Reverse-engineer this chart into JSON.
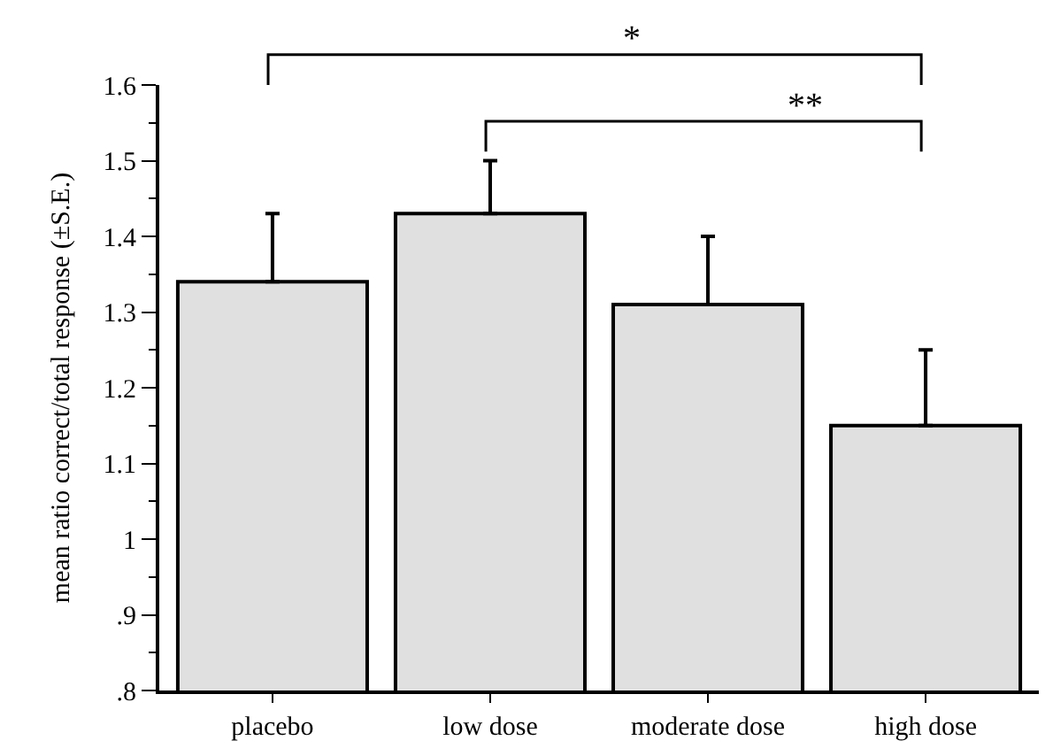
{
  "chart_data": {
    "type": "bar",
    "ylabel": "mean ratio correct/total response (±S.E.)",
    "categories": [
      "placebo",
      "low dose",
      "moderate dose",
      "high dose"
    ],
    "series": [
      {
        "color": "#e0e0e0",
        "values": [
          1.34,
          1.43,
          1.31,
          1.15
        ],
        "errors": [
          [
            1.34,
            1.43
          ],
          [
            1.43,
            1.5
          ],
          [
            1.31,
            1.4
          ],
          [
            1.15,
            1.25
          ]
        ]
      }
    ],
    "ylim": [
      0.8,
      1.6
    ],
    "yticks": [
      {
        "value": 0.8,
        "label": ".8"
      },
      {
        "value": 0.9,
        "label": ".9"
      },
      1,
      1.1,
      1.2,
      1.3,
      1.4,
      1.5,
      1.6
    ],
    "annotations": [
      "*",
      "**"
    ]
  }
}
